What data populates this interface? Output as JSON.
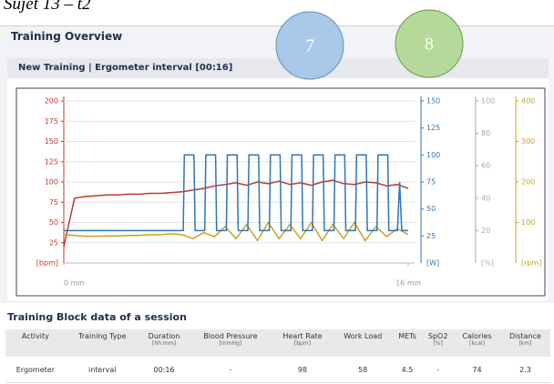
{
  "caption": "Sujet 13 – t2",
  "header": {
    "title": "Training Overview"
  },
  "badges": [
    "7",
    "8"
  ],
  "panel_title": "New Training | Ergometer interval [00:16]",
  "chart_data": {
    "type": "line",
    "x": [
      0,
      0.5,
      1,
      1.5,
      2,
      2.5,
      3,
      3.5,
      4,
      4.5,
      5,
      5.5,
      6,
      6.5,
      7,
      7.5,
      8,
      8.5,
      9,
      9.5,
      10,
      10.5,
      11,
      11.5,
      12,
      12.5,
      13,
      13.5,
      14,
      14.5,
      15,
      15.5,
      16
    ],
    "xlim": [
      0,
      16
    ],
    "xticks": [
      {
        "value": 0,
        "label": "0 min"
      },
      {
        "value": 16,
        "label": "16 min"
      }
    ],
    "ylim": [
      0,
      200
    ],
    "yticks": [
      25,
      50,
      75,
      100,
      125,
      150,
      175,
      200
    ],
    "ylabel": "[bpm]",
    "ycolor": "#c0392b",
    "y2lim": [
      0,
      150
    ],
    "y2ticks": [
      25,
      50,
      75,
      100,
      125,
      150
    ],
    "y2label": "[W]",
    "y2color": "#2e75b6",
    "y3lim": [
      0,
      100
    ],
    "y3ticks": [
      20,
      40,
      60,
      80,
      100
    ],
    "y3label": "[%]",
    "y3color": "#aaaaaa",
    "y4lim": [
      0,
      400
    ],
    "y4ticks": [
      100,
      200,
      300,
      400
    ],
    "y4label": "[rpm]",
    "y4color": "#c9a227",
    "grid": true,
    "series": [
      {
        "color": "#c0392b",
        "axis": "y",
        "values": [
          20,
          80,
          82,
          83,
          84,
          84,
          85,
          85,
          86,
          86,
          87,
          88,
          90,
          92,
          95,
          97,
          99,
          96,
          100,
          98,
          101,
          97,
          99,
          96,
          100,
          102,
          98,
          97,
          100,
          99,
          95,
          97,
          92
        ]
      },
      {
        "color": "#c9a227",
        "axis": "y4",
        "values": [
          70,
          68,
          66,
          66,
          67,
          67,
          68,
          68,
          70,
          70,
          72,
          70,
          60,
          75,
          65,
          90,
          60,
          95,
          55,
          100,
          60,
          95,
          60,
          100,
          55,
          95,
          60,
          100,
          55,
          90,
          65,
          85,
          70
        ]
      },
      {
        "color": "#2e75b6",
        "axis": "y2",
        "x": [
          0,
          5.55,
          5.6,
          6.05,
          6.1,
          6.55,
          6.6,
          7.05,
          7.1,
          7.55,
          7.6,
          8.05,
          8.1,
          8.55,
          8.6,
          9.05,
          9.1,
          9.55,
          9.6,
          10.05,
          10.1,
          10.55,
          10.6,
          11.05,
          11.1,
          11.55,
          11.6,
          12.05,
          12.1,
          12.55,
          12.6,
          13.05,
          13.1,
          13.55,
          13.6,
          14.05,
          14.1,
          14.55,
          14.6,
          15.05,
          15.1,
          15.5,
          15.6,
          15.7,
          16
        ],
        "values": [
          30,
          30,
          100,
          100,
          30,
          30,
          100,
          100,
          30,
          30,
          100,
          100,
          30,
          30,
          100,
          100,
          30,
          30,
          100,
          100,
          30,
          30,
          100,
          100,
          30,
          30,
          100,
          100,
          30,
          30,
          100,
          100,
          30,
          30,
          100,
          100,
          30,
          30,
          100,
          100,
          30,
          30,
          75,
          30,
          30
        ]
      }
    ]
  },
  "table": {
    "title": "Training Block data of a session",
    "columns": [
      {
        "label": "Activity"
      },
      {
        "label": "Training Type"
      },
      {
        "label": "Duration",
        "unit": "[hh:mm]"
      },
      {
        "label": "Blood Pressure",
        "unit": "[mmHg]"
      },
      {
        "label": "Heart Rate",
        "unit": "[bpm]"
      },
      {
        "label": "Work Load"
      },
      {
        "label": "METs"
      },
      {
        "label": "SpO2",
        "unit": "[%]"
      },
      {
        "label": "Calories",
        "unit": "[kcal]"
      },
      {
        "label": "Distance",
        "unit": "[km]"
      }
    ],
    "rows": [
      [
        "Ergometer",
        "interval",
        "00:16",
        "-",
        "98",
        "58",
        "4.5",
        "-",
        "74",
        "2.3"
      ]
    ]
  }
}
